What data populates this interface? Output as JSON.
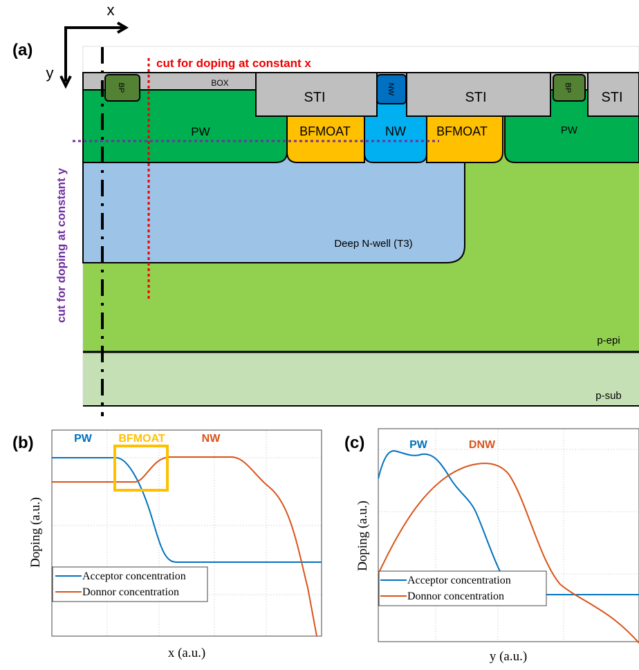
{
  "panel_a": {
    "label": "(a)",
    "axis_x": "x",
    "axis_y": "y",
    "cut_x": "cut for doping at constant x",
    "cut_y": "cut for doping at constant y",
    "regions": {
      "box": "BOX",
      "sti_1": "STI",
      "sti_2": "STI",
      "sti_3": "STI",
      "bp_1": "BP",
      "bp_2": "BP",
      "nw_small": "NW",
      "pw_1": "PW",
      "bfmoat_1": "BFMOAT",
      "nw": "NW",
      "bfmoat_2": "BFMOAT",
      "pw_2": "PW",
      "dnw": "Deep N-well (T3)",
      "pepi": "p-epi",
      "psub": "p-sub"
    }
  },
  "panel_b": {
    "label": "(b)",
    "region_labels": [
      "PW",
      "BFMOAT",
      "NW"
    ],
    "y_label": "Doping (a.u.)",
    "x_label": "x (a.u.)",
    "legend": [
      "Acceptor concentration",
      "Donnor concentration"
    ]
  },
  "panel_c": {
    "label": "(c)",
    "region_labels": [
      "PW",
      "DNW"
    ],
    "y_label": "Doping (a.u.)",
    "x_label": "y (a.u.)",
    "legend": [
      "Acceptor concentration",
      "Donnor concentration"
    ]
  }
}
